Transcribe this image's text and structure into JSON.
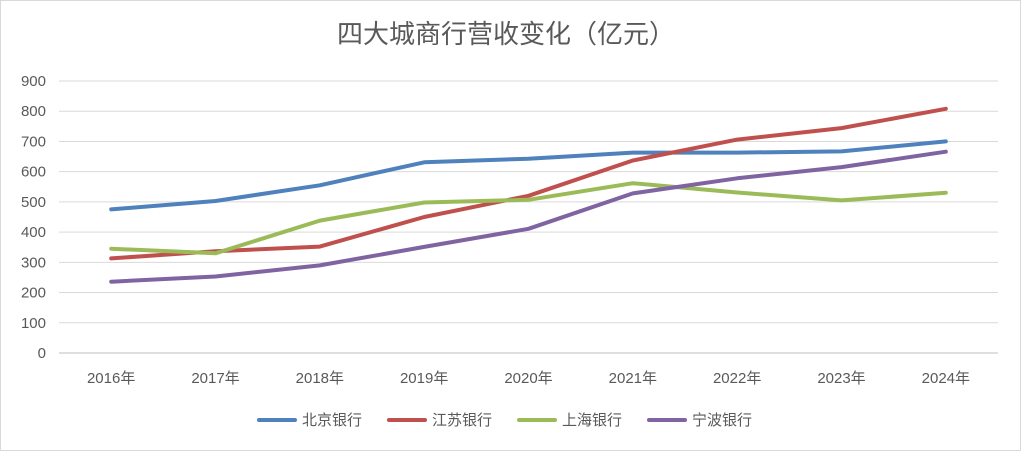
{
  "chart_data": {
    "type": "line",
    "title": "四大城商行营收变化（亿元）",
    "categories": [
      "2016年",
      "2017年",
      "2018年",
      "2019年",
      "2020年",
      "2021年",
      "2022年",
      "2023年",
      "2024年"
    ],
    "ylim": [
      0,
      900
    ],
    "yticks": [
      0,
      100,
      200,
      300,
      400,
      500,
      600,
      700,
      800,
      900
    ],
    "grid": true,
    "legend_position": "bottom",
    "series": [
      {
        "name": "北京银行",
        "color": "#4f81bd",
        "values": [
          475,
          503,
          555,
          631,
          643,
          663,
          663,
          667,
          700
        ]
      },
      {
        "name": "江苏银行",
        "color": "#c0504d",
        "values": [
          313,
          337,
          352,
          450,
          520,
          637,
          706,
          744,
          808
        ]
      },
      {
        "name": "上海银行",
        "color": "#9bbb59",
        "values": [
          345,
          330,
          438,
          498,
          507,
          562,
          531,
          505,
          530
        ]
      },
      {
        "name": "宁波银行",
        "color": "#8064a2",
        "values": [
          236,
          253,
          290,
          351,
          411,
          528,
          578,
          615,
          666
        ]
      }
    ]
  }
}
